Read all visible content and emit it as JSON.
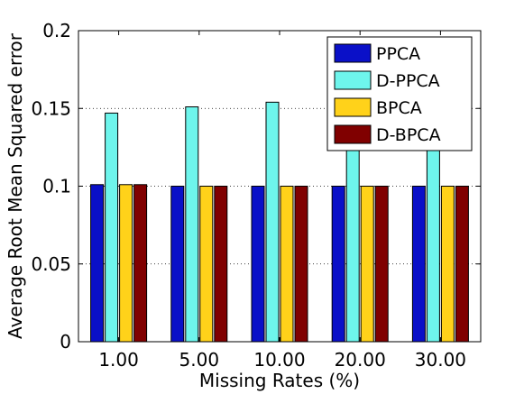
{
  "chart_data": {
    "type": "bar",
    "xlabel": "Missing Rates (%)",
    "ylabel": "Average Root Mean Squared error",
    "categories": [
      "1.00",
      "5.00",
      "10.00",
      "20.00",
      "30.00"
    ],
    "ylim": [
      0,
      0.2
    ],
    "yticks": [
      "0",
      "0.05",
      "0.1",
      "0.15",
      "0.2"
    ],
    "grid": "horizontal dotted",
    "legend_position": "top-right",
    "series": [
      {
        "name": "PPCA",
        "color": "#0a10c8",
        "values": [
          0.101,
          0.1,
          0.1,
          0.1,
          0.1
        ]
      },
      {
        "name": "D-PPCA",
        "color": "#6ef5ec",
        "values": [
          0.147,
          0.151,
          0.154,
          0.158,
          0.16
        ]
      },
      {
        "name": "BPCA",
        "color": "#ffd21a",
        "values": [
          0.101,
          0.1,
          0.1,
          0.1,
          0.1
        ]
      },
      {
        "name": "D-BPCA",
        "color": "#800000",
        "values": [
          0.101,
          0.1,
          0.1,
          0.1,
          0.1
        ]
      }
    ]
  }
}
